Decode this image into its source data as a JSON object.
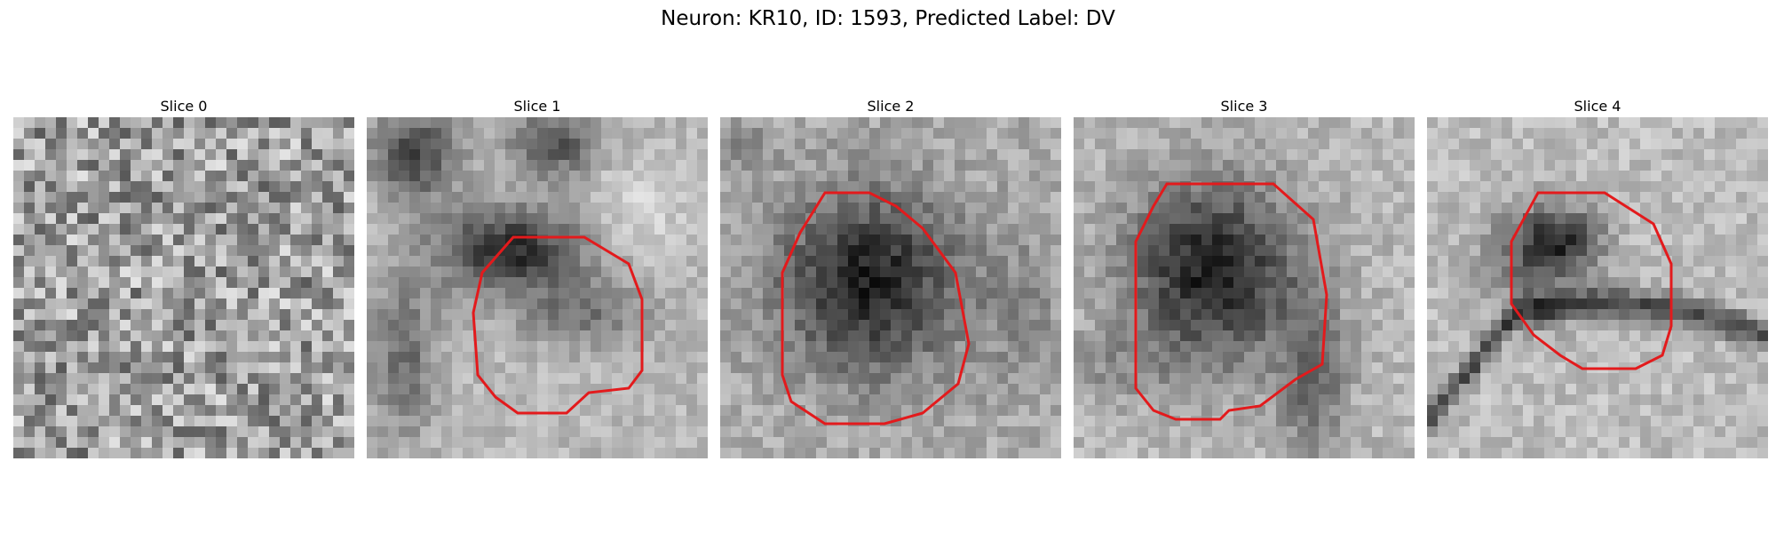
{
  "figure": {
    "title": "Neuron: KR10, ID: 1593, Predicted Label: DV"
  },
  "panels": [
    {
      "title": "Slice 0",
      "has_contour": false
    },
    {
      "title": "Slice 1",
      "has_contour": true
    },
    {
      "title": "Slice 2",
      "has_contour": true
    },
    {
      "title": "Slice 3",
      "has_contour": true
    },
    {
      "title": "Slice 4",
      "has_contour": true
    }
  ],
  "colors": {
    "contour": "#e31a1c",
    "background": "#ffffff"
  }
}
